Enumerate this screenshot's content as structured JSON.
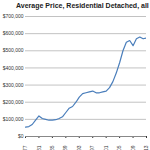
{
  "chart_data": {
    "type": "line",
    "title": "Average Price, Residential Detached, all Fraser Valley",
    "x": [
      1977,
      1978,
      1979,
      1980,
      1981,
      1982,
      1983,
      1984,
      1985,
      1986,
      1987,
      1988,
      1989,
      1990,
      1991,
      1992,
      1993,
      1994,
      1995,
      1996,
      1997,
      1998,
      1999,
      2000,
      2001,
      2002,
      2003,
      2004,
      2005,
      2006,
      2007,
      2008,
      2009,
      2010,
      2011,
      2012,
      2013
    ],
    "values": [
      55000,
      58000,
      70000,
      95000,
      120000,
      105000,
      100000,
      95000,
      95000,
      98000,
      105000,
      115000,
      140000,
      165000,
      175000,
      200000,
      230000,
      250000,
      255000,
      260000,
      265000,
      255000,
      255000,
      260000,
      265000,
      285000,
      320000,
      370000,
      430000,
      500000,
      550000,
      560000,
      530000,
      570000,
      580000,
      570000,
      575000
    ],
    "color": "#4a7ebb",
    "xlim": [
      1977,
      2013
    ],
    "xticks": [
      1977,
      1981,
      1985,
      1989,
      1993,
      1997,
      2001,
      2005,
      2009,
      2013
    ],
    "ylim": [
      0,
      700000
    ],
    "yticks": [
      {
        "value": 0,
        "label": "$0"
      },
      {
        "value": 100000,
        "label": "$100,000"
      },
      {
        "value": 200000,
        "label": "$200,000"
      },
      {
        "value": 300000,
        "label": "$300,000"
      },
      {
        "value": 400000,
        "label": "$400,000"
      },
      {
        "value": 500000,
        "label": "$500,000"
      },
      {
        "value": 600000,
        "label": "$600,000"
      },
      {
        "value": 700000,
        "label": "$700,000"
      }
    ],
    "grid": true
  }
}
